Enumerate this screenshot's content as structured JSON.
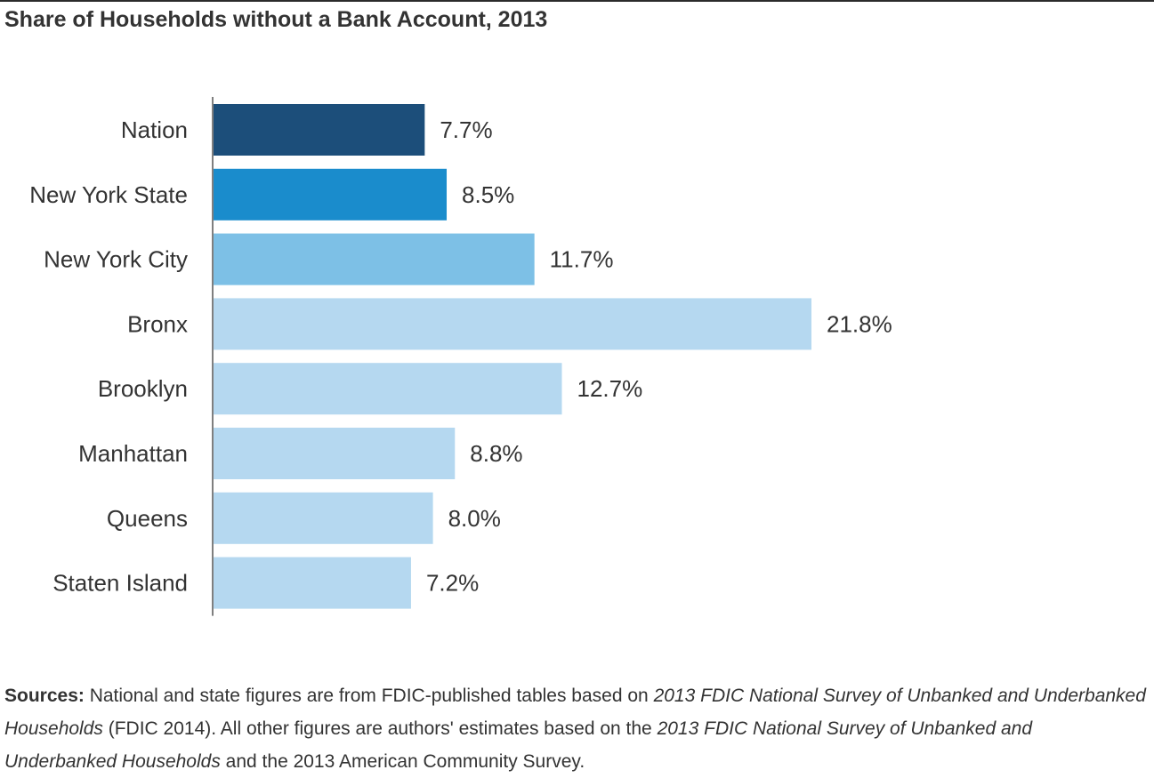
{
  "chart_data": {
    "type": "bar",
    "orientation": "horizontal",
    "title": "Share of Households without a Bank Account, 2013",
    "xlabel": "",
    "ylabel": "",
    "grid": false,
    "xlim": [
      0,
      24
    ],
    "categories": [
      "Nation",
      "New York State",
      "New York City",
      "Bronx",
      "Brooklyn",
      "Manhattan",
      "Queens",
      "Staten Island"
    ],
    "values": [
      7.7,
      8.5,
      11.7,
      21.8,
      12.7,
      8.8,
      8.0,
      7.2
    ],
    "value_labels": [
      "7.7%",
      "8.5%",
      "11.7%",
      "21.8%",
      "12.7%",
      "8.8%",
      "8.0%",
      "7.2%"
    ],
    "bar_colors": [
      "#1c4e7a",
      "#1a8ccc",
      "#7dc0e6",
      "#b5d8f0",
      "#b5d8f0",
      "#b5d8f0",
      "#b5d8f0",
      "#b5d8f0"
    ]
  },
  "sources": {
    "label": "Sources:",
    "text_1": " National and state figures are from FDIC-published tables based on ",
    "italic_1": "2013 FDIC National Survey of Unbanked and Underbanked Households",
    "text_2": " (FDIC 2014). All other figures are authors' estimates based on the ",
    "italic_2": "2013 FDIC National Survey of Unbanked and Underbanked Households",
    "text_3": " and the 2013 American Community Survey."
  }
}
